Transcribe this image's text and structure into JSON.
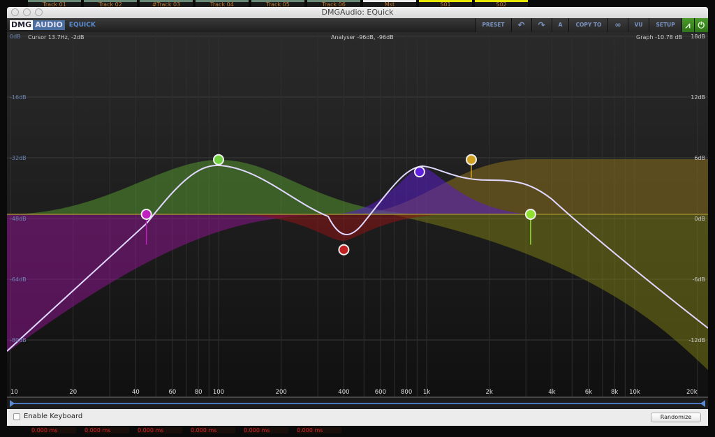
{
  "background_tracks": [
    "Track 01",
    "Track 02",
    "#Track 03",
    "Track 04",
    "Track 05",
    "Track 06",
    "Mst",
    "S01",
    "S02"
  ],
  "background_delays": [
    "0.000 ms",
    "0.000 ms",
    "0.000 ms",
    "0.000 ms",
    "0.000 ms",
    "0.000 ms"
  ],
  "window": {
    "title": "DMGAudio: EQuick"
  },
  "logo": {
    "brand1": "DMG",
    "brand2": "AUDIO",
    "product": "EQUICK"
  },
  "toolbar": {
    "preset": "PRESET",
    "undo_icon": "undo-icon",
    "redo_icon": "redo-icon",
    "a": "A",
    "copy_to": "COPY TO",
    "link_icon": "link-icon",
    "vu": "VU",
    "setup": "SETUP",
    "analyser_icon": "analyser-icon",
    "power_icon": "power-icon",
    "active_color": "#3f8a22"
  },
  "readouts": {
    "cursor": "Cursor 13.7Hz, -2dB",
    "analyser": "Analyser -96dB, -96dB",
    "graph": "Graph -10.78 dB"
  },
  "left_axis": [
    "0dB",
    "-16dB",
    "-32dB",
    "-48dB",
    "-64dB",
    "-80dB"
  ],
  "right_axis": [
    "18dB",
    "12dB",
    "6dB",
    "0dB",
    "-6dB",
    "-12dB"
  ],
  "freq_axis": [
    {
      "f": 10,
      "l": "10"
    },
    {
      "f": 20,
      "l": "20"
    },
    {
      "f": 40,
      "l": "40"
    },
    {
      "f": 60,
      "l": "60"
    },
    {
      "f": 80,
      "l": "80"
    },
    {
      "f": 100,
      "l": "100"
    },
    {
      "f": 200,
      "l": "200"
    },
    {
      "f": 400,
      "l": "400"
    },
    {
      "f": 600,
      "l": "600"
    },
    {
      "f": 800,
      "l": "800"
    },
    {
      "f": 1000,
      "l": "1k"
    },
    {
      "f": 2000,
      "l": "2k"
    },
    {
      "f": 4000,
      "l": "4k"
    },
    {
      "f": 6000,
      "l": "6k"
    },
    {
      "f": 8000,
      "l": "8k"
    },
    {
      "f": 10000,
      "l": "10k"
    },
    {
      "f": 20000,
      "l": "20k"
    }
  ],
  "bands": [
    {
      "name": "highpass",
      "freq": 45,
      "gain": 0,
      "color": "#c020c0",
      "stem": -3
    },
    {
      "name": "low-bell",
      "freq": 100,
      "gain": 5.4,
      "color": "#70d040",
      "stem": 0
    },
    {
      "name": "mid-bell",
      "freq": 400,
      "gain": -3.5,
      "color": "#c02020",
      "stem": 0
    },
    {
      "name": "upper-bell",
      "freq": 925,
      "gain": 4.2,
      "color": "#6020e0",
      "stem": 0
    },
    {
      "name": "high-shelf",
      "freq": 1640,
      "gain": 5.4,
      "color": "#d0a020",
      "stem": -1.8
    },
    {
      "name": "lowpass",
      "freq": 3160,
      "gain": 0,
      "color": "#90e030",
      "stem": -3
    }
  ],
  "footer": {
    "enable_keyboard": "Enable Keyboard",
    "randomize": "Randomize"
  }
}
